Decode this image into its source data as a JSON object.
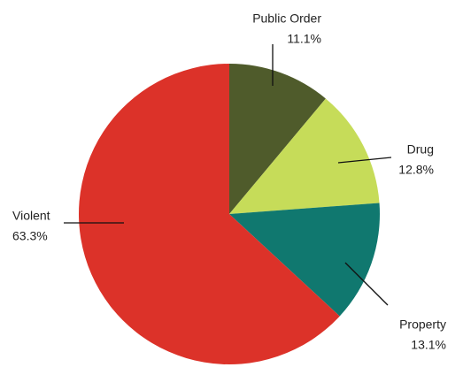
{
  "chart_data": {
    "type": "pie",
    "categories": [
      "Public Order",
      "Drug",
      "Property",
      "Violent"
    ],
    "values": [
      11.1,
      12.8,
      13.1,
      63.3
    ],
    "value_labels": [
      "11.1%",
      "12.8%",
      "13.1%",
      "63.3%"
    ],
    "colors": [
      "#4f5b2b",
      "#c6dc59",
      "#10786f",
      "#dc3229"
    ]
  }
}
